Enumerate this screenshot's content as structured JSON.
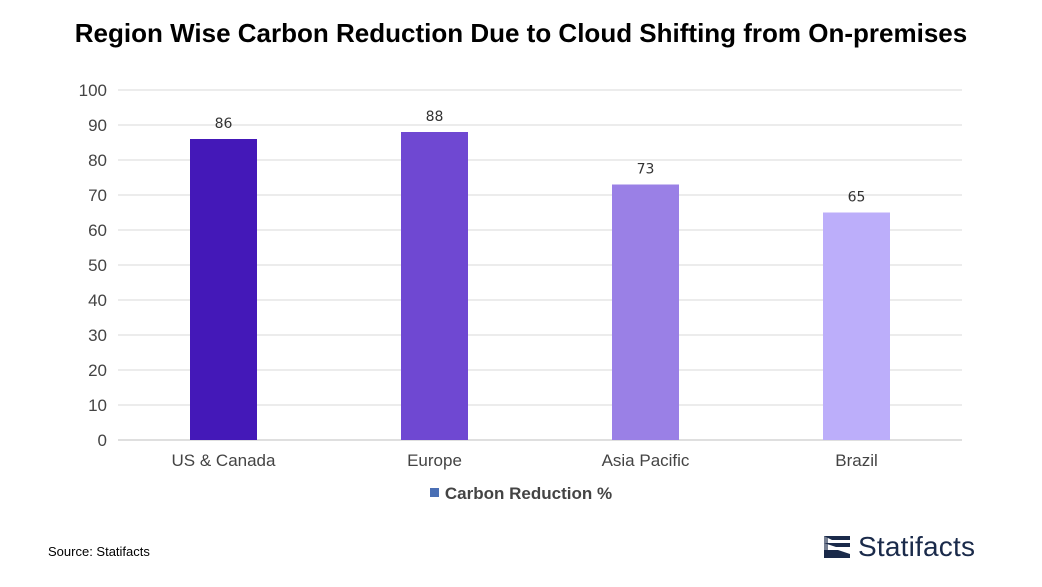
{
  "title": "Region Wise Carbon Reduction Due to Cloud Shifting from On-premises",
  "chart_data": {
    "type": "bar",
    "categories": [
      "US & Canada",
      "Europe",
      "Asia Pacific",
      "Brazil"
    ],
    "series": [
      {
        "name": "Carbon Reduction %",
        "values": [
          86,
          88,
          73,
          65
        ]
      }
    ],
    "bar_colors": [
      "#4418b8",
      "#6f48d2",
      "#9a80e6",
      "#bcaefa"
    ],
    "ylim": [
      0,
      100
    ],
    "yticks": [
      0,
      10,
      20,
      30,
      40,
      50,
      60,
      70,
      80,
      90,
      100
    ],
    "grid": true,
    "legend_position": "bottom",
    "legend_color": "#4a6fb5"
  },
  "source": "Source: Statifacts",
  "brand": {
    "name": "Statifacts",
    "icon": "statifacts-logo-icon"
  }
}
